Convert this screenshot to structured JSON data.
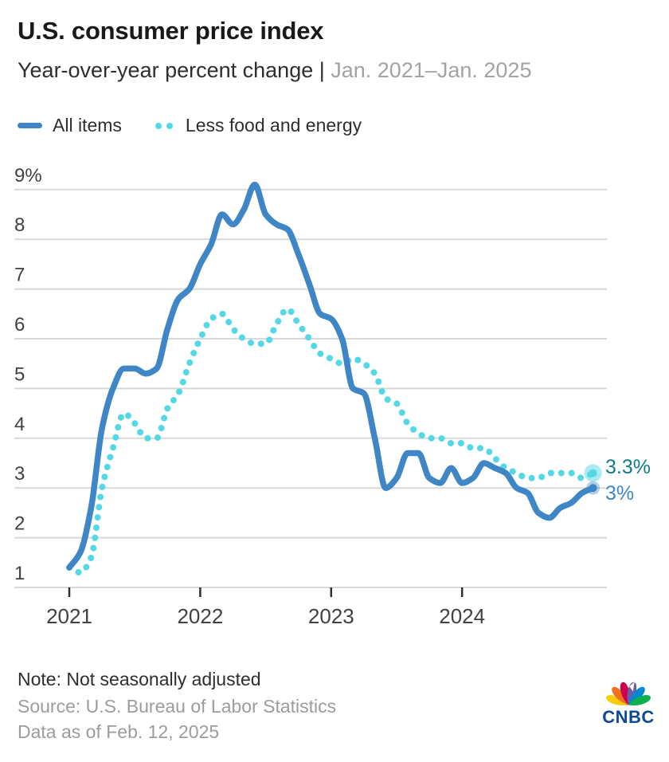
{
  "header": {
    "title": "U.S. consumer price index",
    "subtitle": "Year-over-year percent change | ",
    "subtitle_range": "Jan. 2021–Jan. 2025"
  },
  "chart_data": {
    "type": "line",
    "title": "U.S. consumer price index",
    "subtitle": "Year-over-year percent change",
    "date_range": "Jan. 2021–Jan. 2025",
    "x_start": "2021-01",
    "x_end": "2025-01",
    "x_interval": "monthly",
    "n_points": 49,
    "unit": "percent",
    "grid": "horizontal",
    "legend_position": "top-left",
    "x_tick_labels": [
      "2021",
      "2022",
      "2023",
      "2024"
    ],
    "y_tick_labels": [
      "1",
      "2",
      "3",
      "4",
      "5",
      "6",
      "7",
      "8",
      "9%"
    ],
    "ylim": [
      1,
      9
    ],
    "series": [
      {
        "name": "All items",
        "style": "solid",
        "color": "#3E86C6",
        "end_label": "3%",
        "end_label_color": "#3E86C6",
        "values": [
          1.4,
          1.7,
          2.6,
          4.2,
          5.0,
          5.4,
          5.4,
          5.3,
          5.4,
          6.2,
          6.8,
          7.0,
          7.5,
          7.9,
          8.5,
          8.3,
          8.6,
          9.1,
          8.5,
          8.3,
          8.2,
          7.7,
          7.1,
          6.5,
          6.4,
          6.0,
          5.0,
          4.9,
          4.0,
          3.0,
          3.2,
          3.7,
          3.7,
          3.2,
          3.1,
          3.4,
          3.1,
          3.2,
          3.5,
          3.4,
          3.3,
          3.0,
          2.9,
          2.5,
          2.4,
          2.6,
          2.7,
          2.9,
          3.0
        ]
      },
      {
        "name": "Less food and energy",
        "style": "dotted",
        "color": "#55D8E5",
        "end_label": "3.3%",
        "end_label_color": "#117B8D",
        "values": [
          1.4,
          1.3,
          1.6,
          3.0,
          3.8,
          4.5,
          4.3,
          4.0,
          4.0,
          4.6,
          4.9,
          5.5,
          6.0,
          6.4,
          6.5,
          6.2,
          6.0,
          5.9,
          5.9,
          6.3,
          6.6,
          6.3,
          6.0,
          5.7,
          5.6,
          5.5,
          5.6,
          5.5,
          5.3,
          4.8,
          4.7,
          4.3,
          4.1,
          4.0,
          4.0,
          3.9,
          3.9,
          3.8,
          3.8,
          3.6,
          3.4,
          3.3,
          3.2,
          3.2,
          3.3,
          3.3,
          3.3,
          3.2,
          3.3
        ]
      }
    ]
  },
  "footer": {
    "note": "Note: Not seasonally adjusted",
    "source": "Source: U.S. Bureau of Labor Statistics",
    "data_as_of": "Data as of Feb. 12, 2025",
    "brand": "CNBC"
  },
  "colors": {
    "all_items_blue": "#3E86C6",
    "core_cyan": "#55D8E5",
    "core_label_teal": "#117B8D",
    "grid_gray": "#D8D8D8",
    "axis_text": "#414141",
    "tick_mark": "#2F2F2F",
    "title_text": "#191919",
    "muted_text": "#9C9C9C",
    "peacock": [
      "#FCCC12",
      "#F37021",
      "#CC004C",
      "#6460AA",
      "#0089CF",
      "#0DB14B"
    ],
    "cnbc_navy": "#0D4A96"
  }
}
